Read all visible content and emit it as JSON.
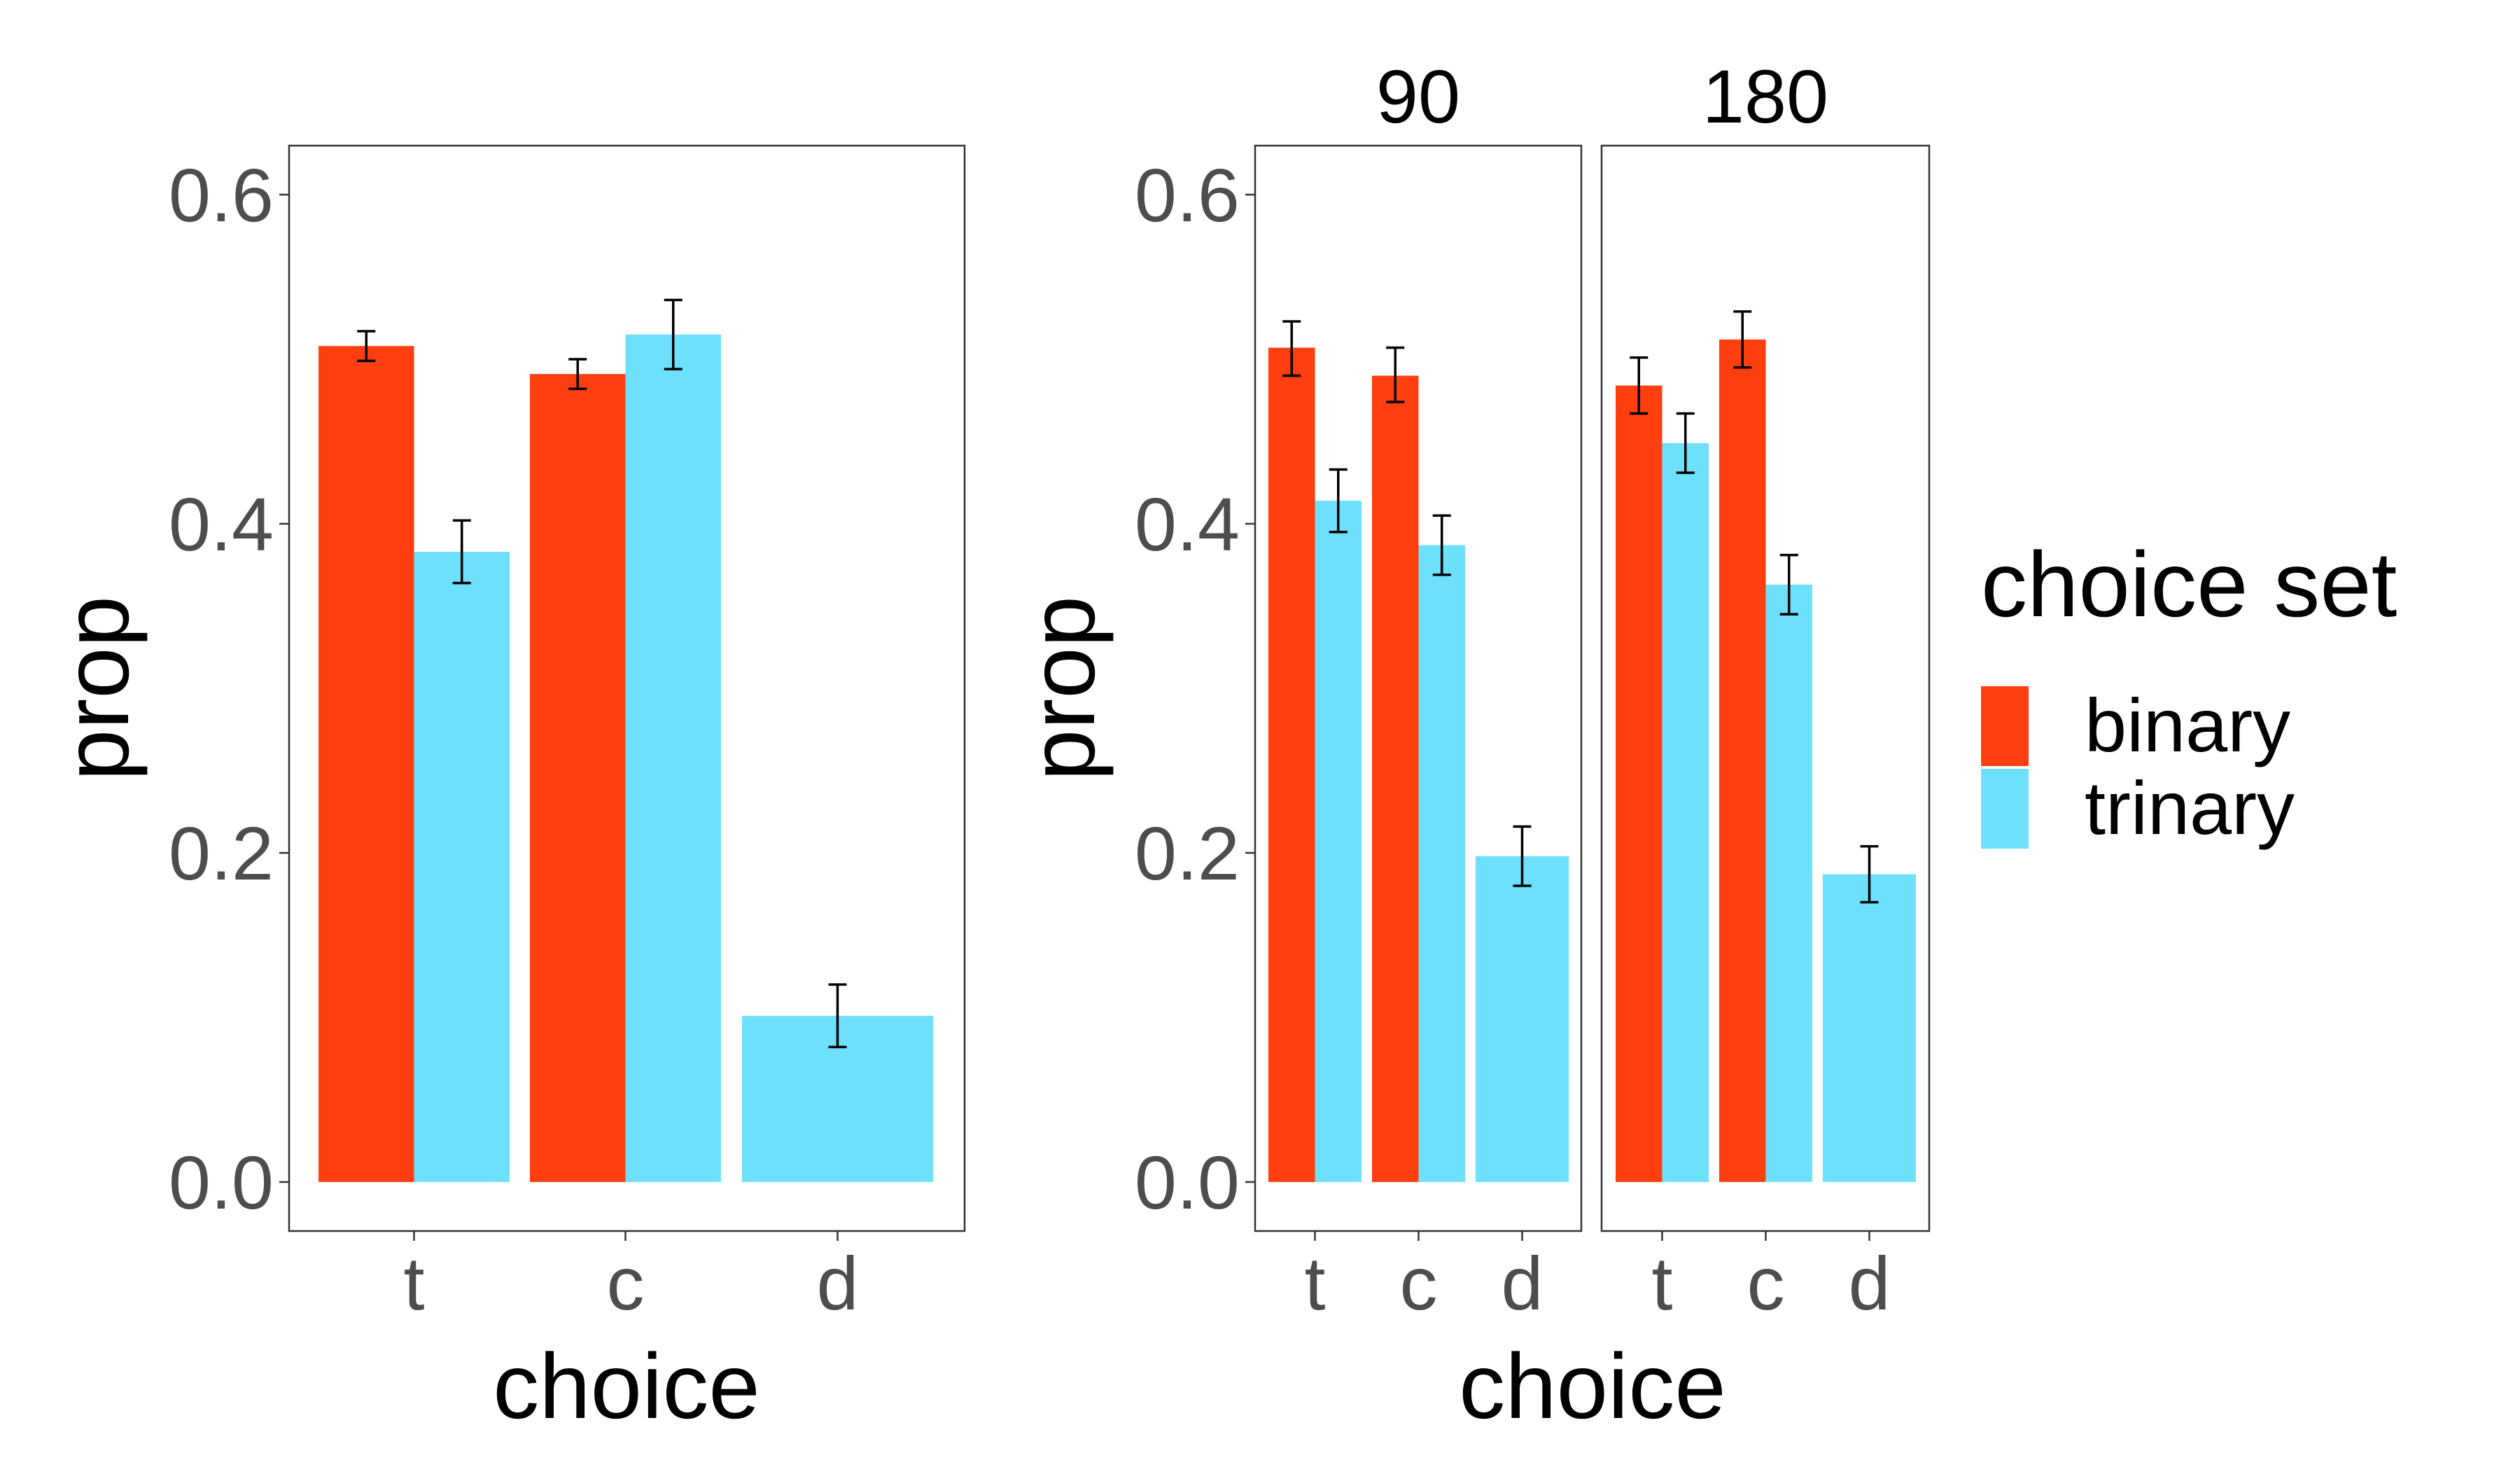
{
  "colors": {
    "binary": "#FF3F0F",
    "trinary": "#6DE0FB",
    "panel_border": "#333333",
    "tick": "#333333",
    "tick_label": "#4d4d4d",
    "errorbar": "#000000"
  },
  "legend": {
    "title": "choice set",
    "items": [
      {
        "label": "binary",
        "color": "#FF3F0F"
      },
      {
        "label": "trinary",
        "color": "#6DE0FB"
      }
    ]
  },
  "chart_data": [
    {
      "type": "bar",
      "xlabel": "choice",
      "ylabel": "prop",
      "ylim": [
        0,
        0.6
      ],
      "yticks": [
        "0.0",
        "0.2",
        "0.4",
        "0.6"
      ],
      "categories": [
        "t",
        "c",
        "d"
      ],
      "series": [
        {
          "name": "binary",
          "values": [
            0.508,
            0.491,
            null
          ],
          "err_low": [
            0.499,
            0.482,
            null
          ],
          "err_high": [
            0.517,
            0.5,
            null
          ]
        },
        {
          "name": "trinary",
          "values": [
            0.383,
            0.515,
            0.101
          ],
          "err_low": [
            0.364,
            0.494,
            0.082
          ],
          "err_high": [
            0.402,
            0.536,
            0.12
          ]
        }
      ]
    },
    {
      "type": "bar",
      "xlabel": "choice",
      "ylabel": "prop",
      "ylim": [
        0,
        0.6
      ],
      "yticks": [
        "0.0",
        "0.2",
        "0.4",
        "0.6"
      ],
      "categories": [
        "t",
        "c",
        "d"
      ],
      "facets": [
        {
          "label": "90",
          "series": [
            {
              "name": "binary",
              "values": [
                0.507,
                0.49,
                null
              ],
              "err_low": [
                0.49,
                0.474,
                null
              ],
              "err_high": [
                0.523,
                0.507,
                null
              ]
            },
            {
              "name": "trinary",
              "values": [
                0.414,
                0.387,
                0.198
              ],
              "err_low": [
                0.395,
                0.369,
                0.18
              ],
              "err_high": [
                0.433,
                0.405,
                0.216
              ]
            }
          ]
        },
        {
          "label": "180",
          "series": [
            {
              "name": "binary",
              "values": [
                0.484,
                0.512,
                null
              ],
              "err_low": [
                0.467,
                0.495,
                null
              ],
              "err_high": [
                0.501,
                0.529,
                null
              ]
            },
            {
              "name": "trinary",
              "values": [
                0.449,
                0.363,
                0.187
              ],
              "err_low": [
                0.431,
                0.345,
                0.17
              ],
              "err_high": [
                0.467,
                0.381,
                0.204
              ]
            }
          ]
        }
      ]
    }
  ]
}
